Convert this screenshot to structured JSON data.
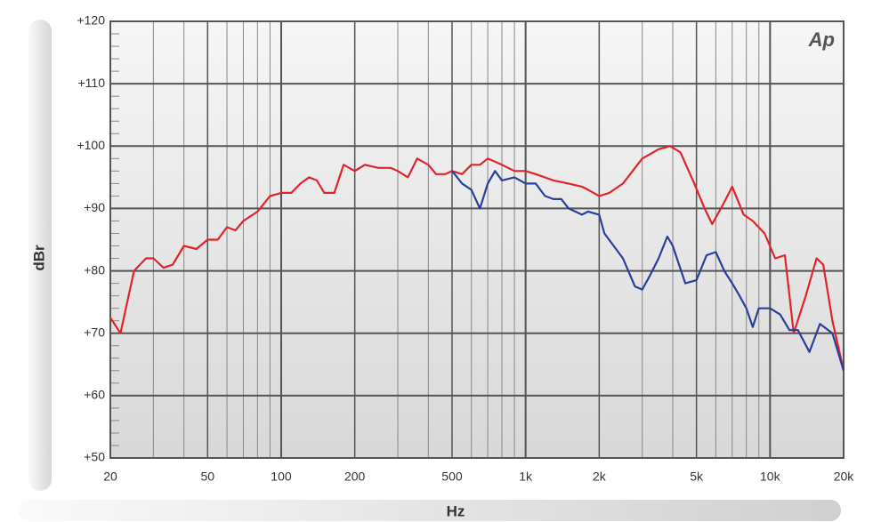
{
  "chart_data": {
    "type": "line",
    "logo": "Ap",
    "x_label": "Hz",
    "y_label": "dBr",
    "xscale": "log",
    "grid": true,
    "xlim": [
      20,
      20000
    ],
    "xticks": [
      20,
      50,
      100,
      200,
      500,
      {
        "value": 1000,
        "label": "1k"
      },
      {
        "value": 2000,
        "label": "2k"
      },
      {
        "value": 5000,
        "label": "5k"
      },
      {
        "value": 10000,
        "label": "10k"
      },
      {
        "value": 20000,
        "label": "20k"
      }
    ],
    "ylim": [
      50,
      120
    ],
    "yticks": [
      {
        "value": 50,
        "label": "+50"
      },
      {
        "value": 60,
        "label": "+60"
      },
      {
        "value": 70,
        "label": "+70"
      },
      {
        "value": 80,
        "label": "+80"
      },
      {
        "value": 90,
        "label": "+90"
      },
      {
        "value": 100,
        "label": "+100"
      },
      {
        "value": 110,
        "label": "+110"
      },
      {
        "value": 120,
        "label": "+120"
      }
    ],
    "series": [
      {
        "color": "#e0242a",
        "x": [
          20,
          22,
          25,
          28,
          30,
          33,
          36,
          40,
          45,
          50,
          55,
          60,
          65,
          70,
          80,
          90,
          100,
          110,
          120,
          130,
          140,
          150,
          165,
          180,
          200,
          220,
          250,
          280,
          300,
          330,
          360,
          400,
          430,
          470,
          500,
          550,
          600,
          650,
          700,
          800,
          900,
          1000,
          1100,
          1300,
          1500,
          1700,
          1800,
          2000,
          2200,
          2500,
          3000,
          3500,
          3900,
          4300,
          4900,
          5400,
          5800,
          6500,
          7000,
          7800,
          8500,
          9500,
          10500,
          11500,
          12500,
          14000,
          15500,
          16500,
          18000,
          20000
        ],
        "values": [
          72.5,
          70,
          80,
          82,
          82,
          80.5,
          81,
          84,
          83.5,
          85,
          85,
          87,
          86.5,
          88,
          89.5,
          92,
          92.5,
          92.5,
          94,
          95,
          94.5,
          92.5,
          92.5,
          97,
          96,
          97,
          96.5,
          96.5,
          96,
          95,
          98,
          97,
          95.5,
          95.5,
          96,
          95.5,
          97,
          97,
          98,
          97,
          96,
          96,
          95.5,
          94.5,
          94,
          93.5,
          93,
          92,
          92.5,
          94,
          98,
          99.5,
          100,
          99,
          94,
          90,
          87.5,
          91,
          93.5,
          89,
          88,
          86,
          82,
          82.5,
          70,
          76,
          82,
          81,
          72,
          64
        ]
      },
      {
        "color": "#2a3f9a",
        "x": [
          500,
          550,
          600,
          650,
          700,
          750,
          800,
          900,
          1000,
          1100,
          1200,
          1300,
          1400,
          1500,
          1700,
          1800,
          2000,
          2100,
          2500,
          2800,
          3000,
          3200,
          3500,
          3800,
          4000,
          4500,
          5000,
          5500,
          6000,
          6500,
          7000,
          7500,
          8000,
          8500,
          9000,
          10000,
          11000,
          12000,
          13000,
          14500,
          16000,
          18000,
          20000
        ],
        "values": [
          96,
          94,
          93,
          90,
          94,
          96,
          94.5,
          95,
          94,
          94,
          92,
          91.5,
          91.5,
          90,
          89,
          89.5,
          89,
          86,
          82,
          77.5,
          77,
          79,
          82,
          85.5,
          84,
          78,
          78.5,
          82.5,
          83,
          80,
          78,
          76,
          74,
          71,
          74,
          74,
          73,
          70.5,
          70.5,
          67,
          71.5,
          70,
          64
        ]
      }
    ]
  }
}
